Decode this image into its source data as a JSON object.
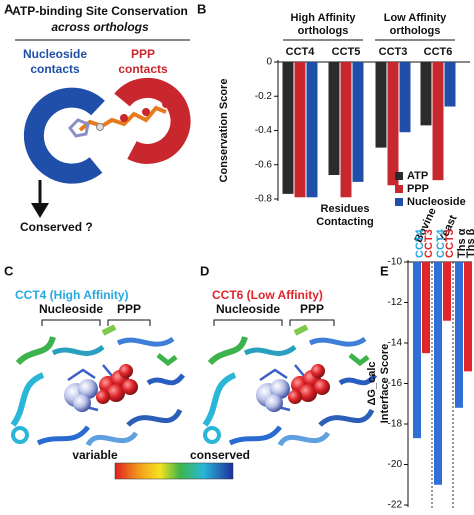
{
  "panels": {
    "a": {
      "letter": "A",
      "title": "ATP-binding Site Conservation",
      "subtitle": "across orthologs",
      "nucleoside_label": [
        "Nucleoside",
        "contacts"
      ],
      "ppp_label": [
        "PPP",
        "contacts"
      ],
      "question": "Conserved ?"
    },
    "c": {
      "letter": "C",
      "title": "CCT4  (High Affinity)",
      "brackets": [
        "Nucleoside",
        "PPP"
      ]
    },
    "d": {
      "letter": "D",
      "title": "CCT6 (Low Affinity)",
      "brackets": [
        "Nucleoside",
        "PPP"
      ]
    },
    "colorbar": {
      "low": "variable",
      "high": "conserved"
    }
  },
  "chart_data": [
    {
      "panel_label": "B",
      "type": "bar",
      "y_label": "Conservation Score",
      "group_labels": [
        [
          "High Affinity",
          "orthologs"
        ],
        [
          "Low Affinity",
          "orthologs"
        ]
      ],
      "categories": [
        "CCT4",
        "CCT5",
        "CCT3",
        "CCT6"
      ],
      "series": [
        {
          "name": "ATP",
          "color": "#2b2b2b",
          "values": [
            -0.77,
            -0.66,
            -0.5,
            -0.37
          ]
        },
        {
          "name": "PPP",
          "color": "#c8282d",
          "values": [
            -0.79,
            -0.79,
            -0.72,
            -0.69
          ]
        },
        {
          "name": "Nucleoside",
          "color": "#1f4fa8",
          "values": [
            -0.79,
            -0.7,
            -0.41,
            -0.26
          ]
        }
      ],
      "legend_title": [
        "Residues",
        "Contacting"
      ],
      "legend": "lower right",
      "ylim": [
        -0.8,
        0
      ],
      "yticks": [
        0,
        -0.2,
        -0.4,
        -0.6,
        -0.8
      ]
    },
    {
      "panel_label": "E",
      "type": "bar",
      "y_label": [
        "ΔG_calc",
        "Interface Score"
      ],
      "group_labels": [
        "Bovine",
        "Yeast"
      ],
      "categories": [
        "CCT4",
        "CCT3",
        "CCT4",
        "CCT3",
        "Ths α",
        "Ths β"
      ],
      "label_colors": [
        "#29a8e0",
        "#e0262b",
        "#29a8e0",
        "#e0262b",
        "#111111",
        "#111111"
      ],
      "colors": [
        "#2f6fd6",
        "#e0262b",
        "#2f6fd6",
        "#e0262b",
        "#2f6fd6",
        "#e0262b"
      ],
      "values": [
        -18.7,
        -14.5,
        -21,
        -12.9,
        -17.2,
        -15.4
      ],
      "ylim": [
        -22,
        -10
      ],
      "yticks": [
        -10,
        -12,
        -14,
        -16,
        -18,
        -20,
        -22
      ]
    }
  ]
}
